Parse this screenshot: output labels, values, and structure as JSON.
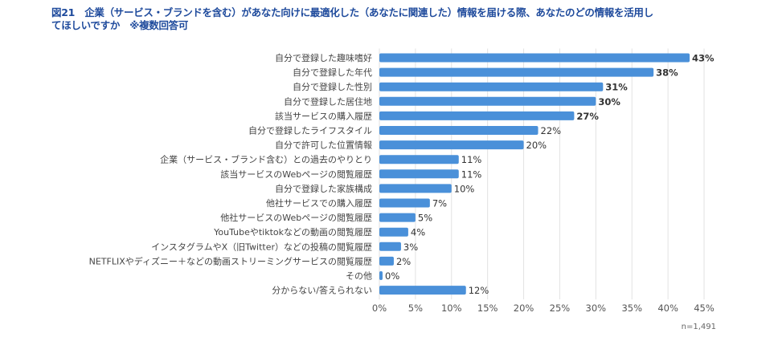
{
  "title_line1": "図21　企業（サービス・ブランドを含む）があなた向けに最適化した（あなたに関連した）情報を届ける際、あなたのどの情報を活用し",
  "title_line2": "てほしいですか　※複数回答可",
  "sample_size": "n=1,491",
  "colors": {
    "bar": "#4a90d9",
    "title": "#1e4a9c",
    "grid": "#e2e2e2"
  },
  "chart_data": {
    "type": "bar",
    "orientation": "horizontal",
    "categories": [
      "自分で登録した趣味嗜好",
      "自分で登録した年代",
      "自分で登録した性別",
      "自分で登録した居住地",
      "該当サービスの購入履歴",
      "自分で登録したライフスタイル",
      "自分で許可した位置情報",
      "企業（サービス・ブランド含む）との過去のやりとり",
      "該当サービスのWebページの閲覧履歴",
      "自分で登録した家族構成",
      "他社サービスでの購入履歴",
      "他社サービスのWebページの閲覧履歴",
      "YouTubeやtiktokなどの動画の閲覧履歴",
      "インスタグラムやX（旧Twitter）などの投稿の閲覧履歴",
      "NETFLIXやディズニー＋などの動画ストリーミングサービスの閲覧履歴",
      "その他",
      "分からない/答えられない"
    ],
    "values": [
      43,
      38,
      31,
      30,
      27,
      22,
      20,
      11,
      11,
      10,
      7,
      5,
      4,
      3,
      2,
      0,
      12
    ],
    "value_labels": [
      "43%",
      "38%",
      "31%",
      "30%",
      "27%",
      "22%",
      "20%",
      "11%",
      "11%",
      "10%",
      "7%",
      "5%",
      "4%",
      "3%",
      "2%",
      "0%",
      "12%"
    ],
    "bold_labels": [
      true,
      true,
      true,
      true,
      true,
      false,
      false,
      false,
      false,
      false,
      false,
      false,
      false,
      false,
      false,
      false,
      false
    ],
    "xlim": [
      0,
      45
    ],
    "xticks": [
      "0%",
      "5%",
      "10%",
      "15%",
      "20%",
      "25%",
      "30%",
      "35%",
      "40%",
      "45%"
    ],
    "grid": true,
    "unit": "%"
  }
}
